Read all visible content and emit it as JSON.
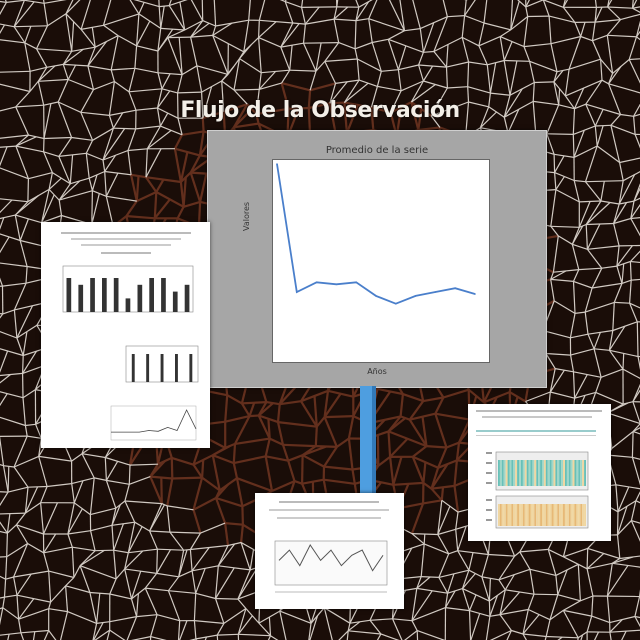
{
  "title": "Flujo de la Observación",
  "colors": {
    "background": "#1a0d08",
    "crackle_light": "#f2ece4",
    "crackle_dark": "#6b3320",
    "line": "#4a7fcb",
    "stand": "#4e9ee0"
  },
  "main_panel": {
    "title": "Promedio de la serie",
    "xlabel": "Años",
    "ylabel": "Valores",
    "chart_data": {
      "type": "line",
      "x": [
        0,
        1,
        2,
        3,
        4,
        5,
        6,
        7,
        8,
        9,
        10
      ],
      "y": [
        10,
        3.4,
        3.9,
        3.8,
        3.9,
        3.2,
        2.8,
        3.2,
        3.4,
        3.6,
        3.3
      ],
      "xlim": [
        0,
        10
      ],
      "ylim": [
        0,
        10
      ]
    }
  },
  "left_panel": {
    "bar_chart": {
      "type": "bar",
      "values": [
        5,
        4,
        5,
        5,
        5,
        2,
        4,
        5,
        5,
        3,
        4
      ]
    },
    "bar_chart_2": {
      "type": "bar",
      "values": [
        5,
        5,
        5,
        5,
        5
      ]
    },
    "line_chart": {
      "type": "line",
      "y": [
        1,
        1,
        1,
        1,
        1.2,
        1.1,
        1.6,
        1.2,
        3.8,
        1.4
      ]
    }
  },
  "bottom_panel": {
    "line_chart": {
      "type": "line",
      "y": [
        4,
        6,
        3,
        7,
        4,
        6,
        3,
        5,
        6,
        2,
        5
      ]
    }
  },
  "right_panel": {
    "heatmap_colors": [
      "#68c0b8",
      "#9fd7c9",
      "#f0d6a0",
      "#e7b976"
    ]
  }
}
